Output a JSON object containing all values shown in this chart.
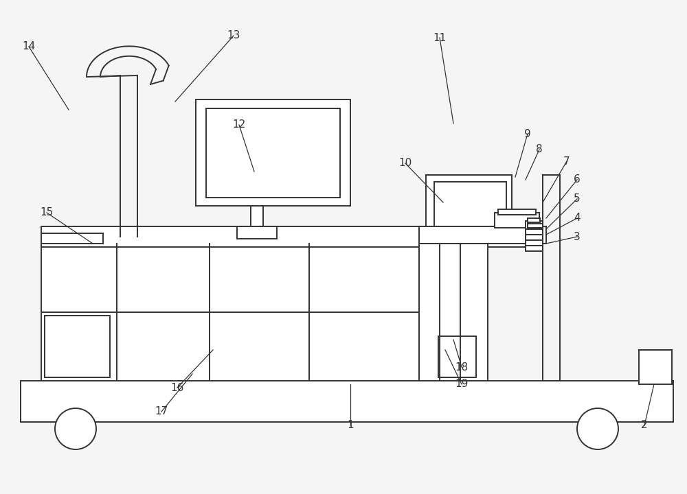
{
  "bg_color": "#f5f5f5",
  "line_color": "#333333",
  "label_color": "#333333",
  "line_width": 1.4,
  "fig_width": 10.0,
  "fig_height": 7.2,
  "dpi": 100
}
